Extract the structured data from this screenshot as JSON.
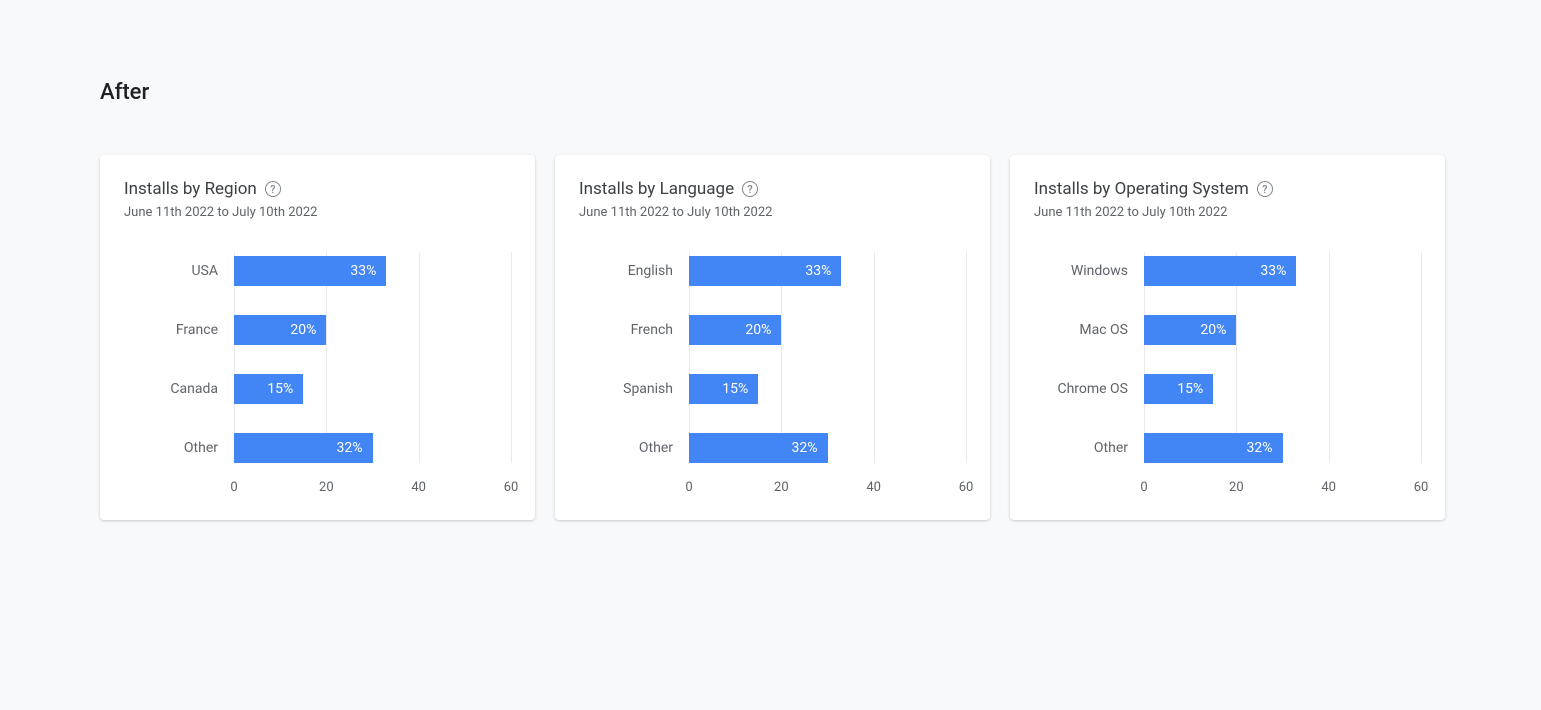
{
  "page_title": "After",
  "background_color": "#f8f9fa",
  "card_background": "#ffffff",
  "charts": [
    {
      "title": "Installs by Region",
      "subtitle": "June 11th 2022 to July 10th 2022",
      "type": "bar",
      "bar_color": "#4285f4",
      "grid_color": "#e8eaed",
      "label_color": "#5f6368",
      "value_text_color": "#ffffff",
      "xmax": 60,
      "xtick_step": 20,
      "xticks": [
        0,
        20,
        40,
        60
      ],
      "bars": [
        {
          "label": "USA",
          "value": 33,
          "display": "33%"
        },
        {
          "label": "France",
          "value": 20,
          "display": "20%"
        },
        {
          "label": "Canada",
          "value": 15,
          "display": "15%"
        },
        {
          "label": "Other",
          "value": 32,
          "display": "32%",
          "override_width_pct": 30
        }
      ]
    },
    {
      "title": "Installs by Language",
      "subtitle": "June 11th 2022 to July 10th 2022",
      "type": "bar",
      "bar_color": "#4285f4",
      "grid_color": "#e8eaed",
      "label_color": "#5f6368",
      "value_text_color": "#ffffff",
      "xmax": 60,
      "xtick_step": 20,
      "xticks": [
        0,
        20,
        40,
        60
      ],
      "bars": [
        {
          "label": "English",
          "value": 33,
          "display": "33%"
        },
        {
          "label": "French",
          "value": 20,
          "display": "20%"
        },
        {
          "label": "Spanish",
          "value": 15,
          "display": "15%"
        },
        {
          "label": "Other",
          "value": 32,
          "display": "32%",
          "override_width_pct": 30
        }
      ]
    },
    {
      "title": "Installs by Operating System",
      "subtitle": "June 11th 2022 to July 10th 2022",
      "type": "bar",
      "bar_color": "#4285f4",
      "grid_color": "#e8eaed",
      "label_color": "#5f6368",
      "value_text_color": "#ffffff",
      "xmax": 60,
      "xtick_step": 20,
      "xticks": [
        0,
        20,
        40,
        60
      ],
      "bars": [
        {
          "label": "Windows",
          "value": 33,
          "display": "33%"
        },
        {
          "label": "Mac OS",
          "value": 20,
          "display": "20%"
        },
        {
          "label": "Chrome OS",
          "value": 15,
          "display": "15%"
        },
        {
          "label": "Other",
          "value": 32,
          "display": "32%",
          "override_width_pct": 30
        }
      ]
    }
  ]
}
